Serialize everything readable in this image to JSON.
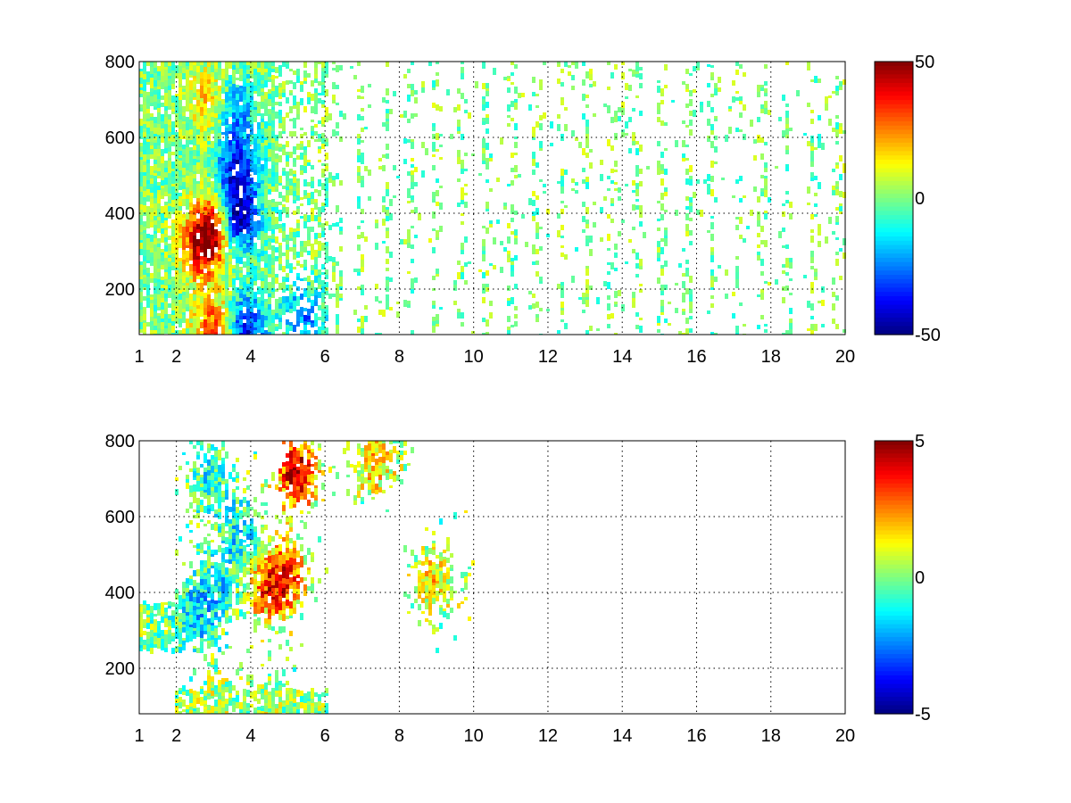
{
  "chart_data": [
    {
      "type": "heatmap",
      "title": "",
      "xlabel": "",
      "ylabel": "",
      "xlim": [
        1,
        20
      ],
      "ylim": [
        80,
        800
      ],
      "xticks": [
        1,
        2,
        4,
        6,
        8,
        10,
        12,
        14,
        16,
        18,
        20
      ],
      "xtick_labels": [
        "1",
        "2",
        "4",
        "6",
        "8",
        "10",
        "12",
        "14",
        "16",
        "18",
        "20"
      ],
      "yticks": [
        200,
        400,
        600,
        800
      ],
      "ytick_labels": [
        "200",
        "400",
        "600",
        "800"
      ],
      "grid": true,
      "colormap": "jet",
      "clim": [
        -50,
        50
      ],
      "colorbar_ticks": [
        -50,
        0,
        50
      ],
      "colorbar_labels": [
        "-50",
        "0",
        "50"
      ],
      "features": [
        {
          "x": 2.6,
          "y": 320,
          "value": 35
        },
        {
          "x": 3.0,
          "y": 370,
          "value": 38
        },
        {
          "x": 3.6,
          "y": 390,
          "value": -48
        },
        {
          "x": 3.6,
          "y": 520,
          "value": -35
        },
        {
          "x": 3.5,
          "y": 680,
          "value": -25
        },
        {
          "x": 2.9,
          "y": 700,
          "value": 20
        },
        {
          "x": 3.0,
          "y": 100,
          "value": 35
        },
        {
          "x": 3.8,
          "y": 100,
          "value": -40
        },
        {
          "x": 5.4,
          "y": 130,
          "value": -25
        }
      ]
    },
    {
      "type": "heatmap",
      "title": "",
      "xlabel": "",
      "ylabel": "",
      "xlim": [
        1,
        20
      ],
      "ylim": [
        80,
        800
      ],
      "xticks": [
        1,
        2,
        4,
        6,
        8,
        10,
        12,
        14,
        16,
        18,
        20
      ],
      "xtick_labels": [
        "1",
        "2",
        "4",
        "6",
        "8",
        "10",
        "12",
        "14",
        "16",
        "18",
        "20"
      ],
      "yticks": [
        200,
        400,
        600,
        800
      ],
      "ytick_labels": [
        "200",
        "400",
        "600",
        "800"
      ],
      "grid": true,
      "colormap": "jet",
      "clim": [
        -5,
        5
      ],
      "colorbar_ticks": [
        -5,
        0,
        5
      ],
      "colorbar_labels": [
        "-5",
        "0",
        "5"
      ],
      "features": [
        {
          "x": 2.5,
          "y": 340,
          "value": -1.5
        },
        {
          "x": 3.0,
          "y": 420,
          "value": -1.2
        },
        {
          "x": 3.7,
          "y": 560,
          "value": -1.5
        },
        {
          "x": 2.8,
          "y": 700,
          "value": -1.0
        },
        {
          "x": 4.4,
          "y": 420,
          "value": 2.5
        },
        {
          "x": 4.9,
          "y": 450,
          "value": 2.8
        },
        {
          "x": 5.2,
          "y": 720,
          "value": 4.5
        },
        {
          "x": 3.0,
          "y": 100,
          "value": 0.5
        },
        {
          "x": 4.5,
          "y": 100,
          "value": 0.5
        },
        {
          "x": 7.3,
          "y": 750,
          "value": 2.0
        },
        {
          "x": 8.9,
          "y": 430,
          "value": 1.5
        }
      ]
    }
  ]
}
